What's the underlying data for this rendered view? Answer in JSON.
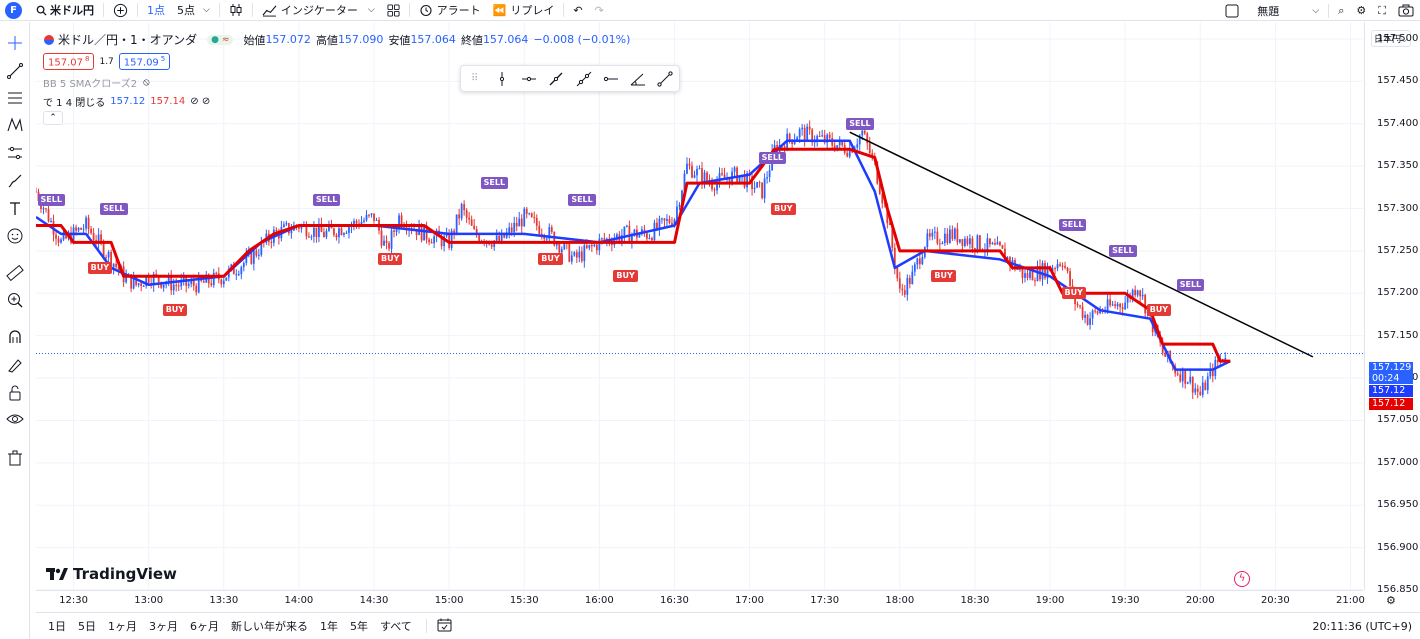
{
  "topbar": {
    "avatar": "F",
    "symbol": "米ドル円",
    "interval_1": "1点",
    "interval_2": "5点",
    "indicators": "インジケーター",
    "alert": "アラート",
    "replay": "リプレイ",
    "layout_name": "無題"
  },
  "legend": {
    "title": "米ドル／円・1・オアンダ",
    "open_label": "始値",
    "open": "157.072",
    "high_label": "高値",
    "high": "157.090",
    "low_label": "安値",
    "low": "157.064",
    "close_label": "終値",
    "close": "157.064",
    "change": "−0.008 (−0.01%)",
    "bid": "157.07",
    "bid_sup": "8",
    "spread": "1.7",
    "ask": "157.09",
    "ask_sup": "5",
    "indicator_name": "BB 5 SMAクローズ2",
    "indicator2_prefix": "で 1 4 閉じる",
    "indicator2_v1": "157.12",
    "indicator2_v2": "157.14",
    "indicator2_icons": "⊘ ⊘"
  },
  "price_axis": {
    "currency": "日本円",
    "labels": [
      "157.500",
      "157.450",
      "157.400",
      "157.350",
      "157.300",
      "157.250",
      "157.200",
      "157.150",
      "157.100",
      "157.050",
      "157.000",
      "156.950",
      "156.900",
      "156.850"
    ],
    "current_price": "157.129",
    "countdown": "00:24",
    "tag_blue": "157.12",
    "tag_red": "157.12"
  },
  "time_axis": {
    "labels": [
      "12:30",
      "13:00",
      "13:30",
      "14:00",
      "14:30",
      "15:00",
      "15:30",
      "16:00",
      "16:30",
      "17:00",
      "17:30",
      "18:00",
      "18:30",
      "19:00",
      "19:30",
      "20:00",
      "20:30",
      "21:00"
    ]
  },
  "bottombar": {
    "ranges": [
      "1日",
      "5日",
      "1ヶ月",
      "3ヶ月",
      "6ヶ月",
      "新しい年が来る",
      "1年",
      "5年",
      "すべて"
    ],
    "clock": "20:11:36 (UTC+9)"
  },
  "watermark": "TradingView",
  "signals": {
    "sell_label": "SELL",
    "buy_label": "BUY"
  },
  "colors": {
    "up": "#2962ff",
    "down": "#e53935",
    "line_red": "#e50000",
    "line_blue": "#1e3cff",
    "sell": "#7e57c2",
    "buy": "#e53935"
  },
  "chart_data": {
    "type": "candlestick",
    "ylim": [
      156.85,
      157.52
    ],
    "x_range": [
      "12:15",
      "21:05"
    ],
    "close_series": [
      [
        "12:15",
        157.32
      ],
      [
        "12:20",
        157.29
      ],
      [
        "12:25",
        157.26
      ],
      [
        "12:30",
        157.27
      ],
      [
        "12:35",
        157.28
      ],
      [
        "12:40",
        157.26
      ],
      [
        "12:45",
        157.24
      ],
      [
        "12:50",
        157.22
      ],
      [
        "12:55",
        157.21
      ],
      [
        "13:00",
        157.22
      ],
      [
        "13:10",
        157.21
      ],
      [
        "13:20",
        157.21
      ],
      [
        "13:30",
        157.22
      ],
      [
        "13:40",
        157.24
      ],
      [
        "13:50",
        157.27
      ],
      [
        "14:00",
        157.28
      ],
      [
        "14:10",
        157.27
      ],
      [
        "14:20",
        157.28
      ],
      [
        "14:30",
        157.29
      ],
      [
        "14:35",
        157.25
      ],
      [
        "14:40",
        157.29
      ],
      [
        "14:50",
        157.27
      ],
      [
        "15:00",
        157.26
      ],
      [
        "15:05",
        157.3
      ],
      [
        "15:10",
        157.27
      ],
      [
        "15:20",
        157.26
      ],
      [
        "15:30",
        157.29
      ],
      [
        "15:40",
        157.27
      ],
      [
        "15:50",
        157.24
      ],
      [
        "16:00",
        157.26
      ],
      [
        "16:10",
        157.27
      ],
      [
        "16:20",
        157.27
      ],
      [
        "16:30",
        157.29
      ],
      [
        "16:35",
        157.35
      ],
      [
        "16:45",
        157.33
      ],
      [
        "16:55",
        157.34
      ],
      [
        "17:05",
        157.32
      ],
      [
        "17:10",
        157.37
      ],
      [
        "17:20",
        157.39
      ],
      [
        "17:30",
        157.38
      ],
      [
        "17:40",
        157.37
      ],
      [
        "17:45",
        157.39
      ],
      [
        "17:50",
        157.35
      ],
      [
        "17:55",
        157.29
      ],
      [
        "18:00",
        157.2
      ],
      [
        "18:05",
        157.22
      ],
      [
        "18:10",
        157.26
      ],
      [
        "18:20",
        157.27
      ],
      [
        "18:30",
        157.26
      ],
      [
        "18:40",
        157.25
      ],
      [
        "18:50",
        157.22
      ],
      [
        "19:00",
        157.23
      ],
      [
        "19:05",
        157.24
      ],
      [
        "19:10",
        157.19
      ],
      [
        "19:15",
        157.17
      ],
      [
        "19:20",
        157.18
      ],
      [
        "19:30",
        157.19
      ],
      [
        "19:35",
        157.21
      ],
      [
        "19:40",
        157.17
      ],
      [
        "19:45",
        157.13
      ],
      [
        "19:50",
        157.11
      ],
      [
        "19:55",
        157.1
      ],
      [
        "20:00",
        157.08
      ],
      [
        "20:05",
        157.11
      ],
      [
        "20:10",
        157.13
      ]
    ],
    "ma_red": [
      [
        "12:15",
        157.28
      ],
      [
        "12:25",
        157.28
      ],
      [
        "12:30",
        157.26
      ],
      [
        "12:45",
        157.26
      ],
      [
        "12:50",
        157.22
      ],
      [
        "13:30",
        157.22
      ],
      [
        "13:40",
        157.25
      ],
      [
        "13:50",
        157.27
      ],
      [
        "14:00",
        157.28
      ],
      [
        "14:50",
        157.28
      ],
      [
        "15:00",
        157.26
      ],
      [
        "16:30",
        157.26
      ],
      [
        "16:35",
        157.33
      ],
      [
        "17:00",
        157.33
      ],
      [
        "17:10",
        157.37
      ],
      [
        "17:40",
        157.37
      ],
      [
        "17:50",
        157.36
      ],
      [
        "17:55",
        157.3
      ],
      [
        "18:00",
        157.25
      ],
      [
        "18:40",
        157.25
      ],
      [
        "18:45",
        157.23
      ],
      [
        "19:00",
        157.23
      ],
      [
        "19:05",
        157.2
      ],
      [
        "19:30",
        157.2
      ],
      [
        "19:40",
        157.18
      ],
      [
        "19:45",
        157.14
      ],
      [
        "20:05",
        157.14
      ],
      [
        "20:08",
        157.12
      ],
      [
        "20:12",
        157.12
      ]
    ],
    "ma_blue": [
      [
        "12:15",
        157.29
      ],
      [
        "12:25",
        157.27
      ],
      [
        "12:35",
        157.27
      ],
      [
        "12:45",
        157.23
      ],
      [
        "13:00",
        157.21
      ],
      [
        "13:30",
        157.22
      ],
      [
        "13:45",
        157.26
      ],
      [
        "14:00",
        157.28
      ],
      [
        "14:30",
        157.28
      ],
      [
        "15:00",
        157.27
      ],
      [
        "15:30",
        157.27
      ],
      [
        "16:00",
        157.26
      ],
      [
        "16:30",
        157.28
      ],
      [
        "16:40",
        157.33
      ],
      [
        "17:00",
        157.34
      ],
      [
        "17:15",
        157.38
      ],
      [
        "17:40",
        157.38
      ],
      [
        "17:50",
        157.32
      ],
      [
        "17:58",
        157.23
      ],
      [
        "18:10",
        157.25
      ],
      [
        "18:40",
        157.24
      ],
      [
        "19:00",
        157.22
      ],
      [
        "19:20",
        157.18
      ],
      [
        "19:40",
        157.17
      ],
      [
        "19:50",
        157.11
      ],
      [
        "20:05",
        157.11
      ],
      [
        "20:12",
        157.12
      ]
    ],
    "trendline": [
      [
        "17:40",
        157.39
      ],
      [
        "20:45",
        157.125
      ]
    ],
    "dotted_price": 157.129,
    "sell_signals": [
      [
        "12:20",
        157.31
      ],
      [
        "12:45",
        157.3
      ],
      [
        "14:10",
        157.31
      ],
      [
        "15:17",
        157.33
      ],
      [
        "15:52",
        157.31
      ],
      [
        "17:08",
        157.36
      ],
      [
        "17:43",
        157.4
      ],
      [
        "19:08",
        157.28
      ],
      [
        "19:28",
        157.25
      ],
      [
        "19:55",
        157.21
      ]
    ],
    "buy_signals": [
      [
        "12:40",
        157.23
      ],
      [
        "13:10",
        157.18
      ],
      [
        "14:36",
        157.24
      ],
      [
        "15:40",
        157.24
      ],
      [
        "16:10",
        157.22
      ],
      [
        "17:13",
        157.3
      ],
      [
        "18:17",
        157.22
      ],
      [
        "19:09",
        157.2
      ],
      [
        "19:43",
        157.18
      ]
    ]
  }
}
